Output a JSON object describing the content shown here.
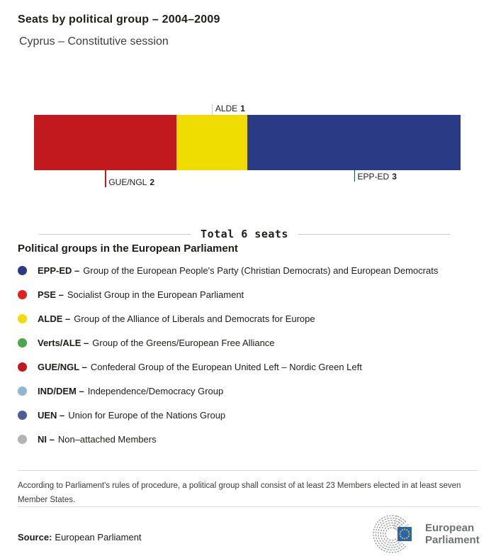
{
  "header": {
    "title": "Seats by political group – 2004–2009",
    "subtitle": "Cyprus – Constitutive session"
  },
  "chart_data": {
    "type": "bar",
    "orientation": "horizontal-stacked",
    "title": "Seats by political group – 2004–2009",
    "subtitle": "Cyprus – Constitutive session",
    "total_seats": 6,
    "series": [
      {
        "name": "GUE/NGL",
        "value": 2,
        "color": "#C1191D",
        "label_side": "below",
        "tick_len": 24
      },
      {
        "name": "ALDE",
        "value": 1,
        "color": "#EFDC00",
        "label_side": "above",
        "tick_len": 15
      },
      {
        "name": "EPP-ED",
        "value": 3,
        "color": "#2B3A84",
        "label_side": "below",
        "tick_len": 16
      }
    ]
  },
  "divider": {
    "label": "Total 6 seats"
  },
  "legend": {
    "heading": "Political groups in the European Parliament",
    "items": [
      {
        "name": "EPP-ED –",
        "desc": "Group of the European People's Party (Christian Democrats) and European Democrats",
        "color": "#2B3A84"
      },
      {
        "name": "PSE –",
        "desc": "Socialist Group in the European Parliament",
        "color": "#E3201B"
      },
      {
        "name": "ALDE –",
        "desc": "Group of the Alliance of Liberals and Democrats for Europe",
        "color": "#EFDC00"
      },
      {
        "name": "Verts/ALE –",
        "desc": "Group of the Greens/European Free Alliance",
        "color": "#4AA648"
      },
      {
        "name": "GUE/NGL –",
        "desc": "Confederal Group of the European United Left – Nordic Green Left",
        "color": "#C1191D"
      },
      {
        "name": "IND/DEM –",
        "desc": "Independence/Democracy Group",
        "color": "#8FB7CE"
      },
      {
        "name": "UEN –",
        "desc": "Union for Europe of the Nations Group",
        "color": "#4C5B9D"
      },
      {
        "name": "NI –",
        "desc": "Non–attached Members",
        "color": "#B3B3B3"
      }
    ]
  },
  "footnote": {
    "text": "According to Parliament's rules of procedure, a political group shall consist of at least 23 Members elected in at least seven Member States."
  },
  "footer": {
    "source_label": "Source:",
    "source_value": "European Parliament",
    "logo": {
      "line1": "European",
      "line2": "Parliament"
    }
  }
}
